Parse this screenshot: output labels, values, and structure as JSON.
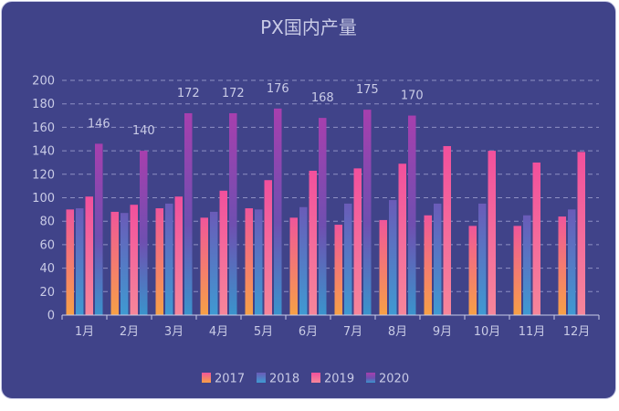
{
  "chart_data": {
    "type": "bar",
    "title": "PX国内产量",
    "xlabel": "",
    "ylabel": "",
    "ylim": [
      0,
      200
    ],
    "yticks": [
      0,
      20,
      40,
      60,
      80,
      100,
      120,
      140,
      160,
      180,
      200
    ],
    "grid": true,
    "legend_position": "bottom",
    "categories": [
      "1月",
      "2月",
      "3月",
      "4月",
      "5月",
      "6月",
      "7月",
      "8月",
      "9月",
      "10月",
      "11月",
      "12月"
    ],
    "series": [
      {
        "name": "2017",
        "values": [
          90,
          88,
          91,
          83,
          91,
          83,
          77,
          81,
          85,
          76,
          76,
          84
        ],
        "color": "#f7a046"
      },
      {
        "name": "2018",
        "values": [
          91,
          87,
          95,
          88,
          90,
          92,
          95,
          98,
          95,
          95,
          85,
          90
        ],
        "color": "#4b8dca"
      },
      {
        "name": "2019",
        "values": [
          101,
          94,
          101,
          106,
          115,
          123,
          125,
          129,
          144,
          140,
          130,
          139
        ],
        "color": "#f0569a"
      },
      {
        "name": "2020",
        "values": [
          146,
          140,
          172,
          172,
          176,
          168,
          175,
          170,
          null,
          null,
          null,
          null
        ],
        "color": "#a046b8"
      }
    ],
    "data_labels_series": "2020"
  }
}
